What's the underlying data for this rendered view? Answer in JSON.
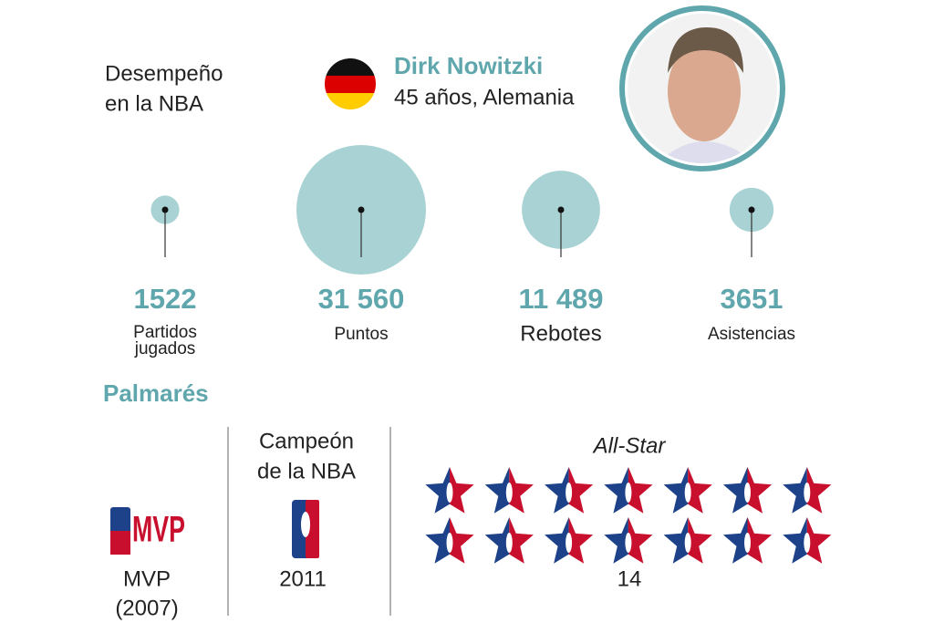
{
  "header": {
    "label_lines": [
      "Desempeño",
      "en la NBA"
    ],
    "name": "Dirk Nowitzki",
    "subtitle": "45 años, Alemania"
  },
  "stats": {
    "values": [
      1522,
      31560,
      11489,
      3651
    ],
    "value_labels": [
      "1522",
      "31 560",
      "11 489",
      "3651"
    ],
    "labels": [
      "Partidos jugados",
      "Puntos",
      "Rebotes",
      "Asistencias"
    ]
  },
  "palmares": {
    "title": "Palmarés",
    "mvp": {
      "logo_text": "MVP",
      "caption_lines": [
        "MVP",
        "(2007)"
      ]
    },
    "champion": {
      "title_lines": [
        "Campeón",
        "de la NBA"
      ],
      "year": "2011"
    },
    "all_star": {
      "title": "All-Star",
      "count": 14
    }
  }
}
